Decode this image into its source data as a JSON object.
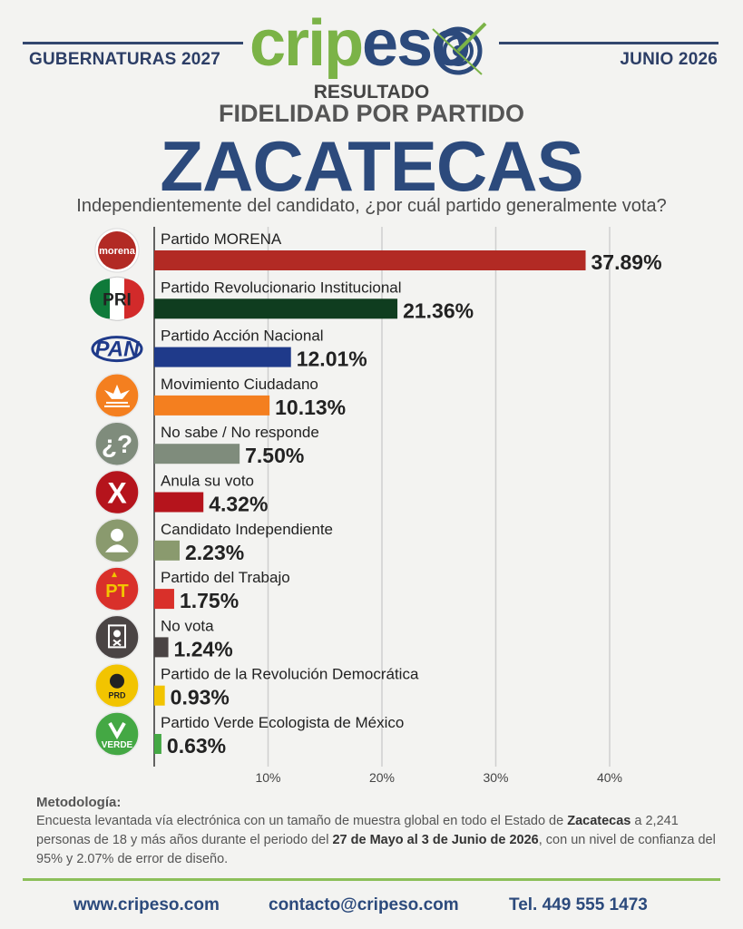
{
  "header": {
    "left_label": "GUBERNATURAS 2027",
    "right_label": "JUNIO 2026",
    "logo_green": "crip",
    "logo_blue": "eso",
    "brand_colors": {
      "navy": "#2c4a7c",
      "green": "#7bb347"
    }
  },
  "title": {
    "kicker": "RESULTADO",
    "subtitle": "FIDELIDAD POR PARTIDO",
    "state": "ZACATECAS",
    "question": "Independientemente del candidato, ¿por cuál partido generalmente vota?"
  },
  "chart_data": {
    "type": "bar",
    "orientation": "horizontal",
    "categories": [
      "Partido MORENA",
      "Partido Revolucionario Institucional",
      "Partido Acción Nacional",
      "Movimiento Ciudadano",
      "No sabe / No responde",
      "Anula su voto",
      "Candidato Independiente",
      "Partido del Trabajo",
      "No vota",
      "Partido de la Revolución Democrática",
      "Partido Verde Ecologista de México"
    ],
    "values": [
      37.89,
      21.36,
      12.01,
      10.13,
      7.5,
      4.32,
      2.23,
      1.75,
      1.24,
      0.93,
      0.63
    ],
    "value_labels": [
      "37.89%",
      "21.36%",
      "12.01%",
      "10.13%",
      "7.50%",
      "4.32%",
      "2.23%",
      "1.75%",
      "1.24%",
      "0.93%",
      "0.63%"
    ],
    "colors": [
      "#b22a24",
      "#0f3d1f",
      "#1f3a8a",
      "#f47f1f",
      "#7f8c7c",
      "#b5141c",
      "#8a9a6e",
      "#d9302a",
      "#4a4444",
      "#f2c400",
      "#44a844"
    ],
    "icons": [
      "morena-logo",
      "pri-logo",
      "pan-logo",
      "mc-logo",
      "question-icon",
      "x-icon",
      "person-icon",
      "pt-logo",
      "ballot-icon",
      "prd-logo",
      "verde-logo"
    ],
    "icon_texts": [
      "morena",
      "PRI",
      "PAN",
      "",
      "¿?",
      "X",
      "",
      "PT",
      "",
      "PRD",
      "VERDE"
    ],
    "x_ticks": [
      10,
      20,
      30,
      40
    ],
    "x_tick_labels": [
      "10%",
      "20%",
      "30%",
      "40%"
    ],
    "xlim": [
      0,
      40
    ],
    "grid": true
  },
  "methodology": {
    "title": "Metodología:",
    "p1": "Encuesta levantada vía electrónica con un tamaño de muestra global en todo el Estado de ",
    "state_bold": "Zacatecas",
    "p2": " a 2,241 personas de 18 y más años durante el periodo del ",
    "dates_bold": "27 de Mayo al 3 de Junio de 2026",
    "p3": ", con un nivel de confianza del 95% y 2.07% de error de diseño."
  },
  "footer": {
    "website": "www.cripeso.com",
    "email": "contacto@cripeso.com",
    "phone": "Tel. 449 555 1473"
  }
}
